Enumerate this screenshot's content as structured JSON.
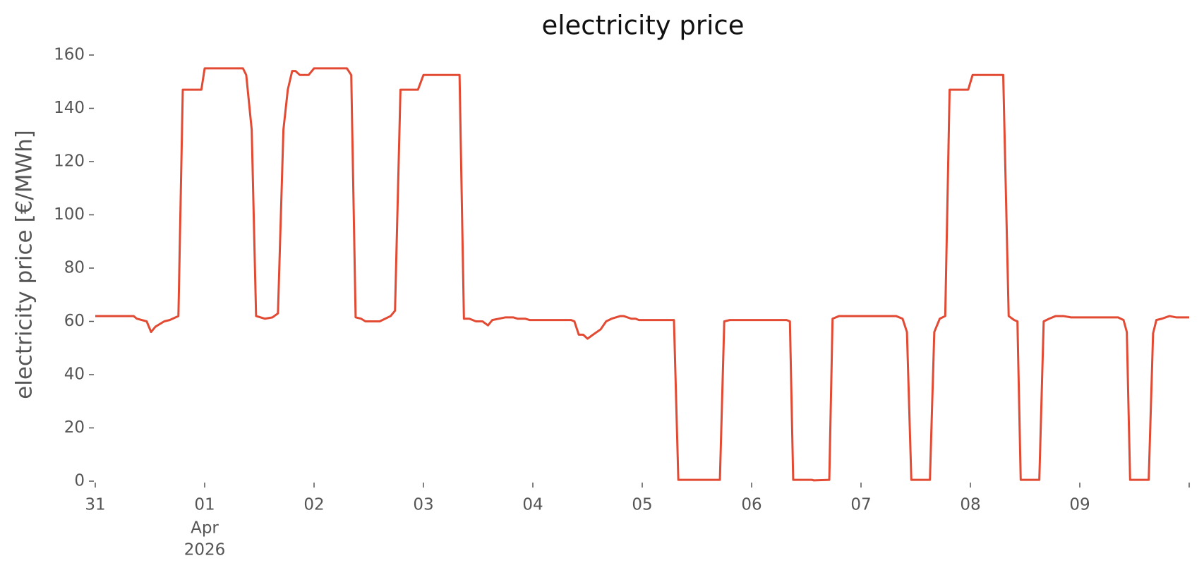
{
  "chart_data": {
    "type": "line",
    "title": "electricity price",
    "y_label": "electricity price [€/MWh]",
    "x_sublabels": [
      "Apr",
      "2026"
    ],
    "series": [
      {
        "name": "electricity price",
        "color": "#e24a33",
        "x": [
          0,
          0.35,
          0.38,
          0.47,
          0.51,
          0.55,
          0.63,
          0.68,
          0.76,
          0.8,
          0.97,
          1.0,
          1.35,
          1.38,
          1.43,
          1.47,
          1.55,
          1.62,
          1.67,
          1.72,
          1.76,
          1.8,
          1.83,
          1.87,
          1.95,
          2.0,
          2.3,
          2.34,
          2.38,
          2.43,
          2.47,
          2.6,
          2.65,
          2.7,
          2.74,
          2.79,
          2.95,
          3.0,
          3.33,
          3.37,
          3.42,
          3.48,
          3.54,
          3.59,
          3.63,
          3.75,
          3.82,
          3.86,
          3.93,
          3.97,
          4.35,
          4.38,
          4.42,
          4.46,
          4.5,
          4.55,
          4.62,
          4.67,
          4.72,
          4.8,
          4.83,
          4.9,
          4.94,
          4.97,
          5.0,
          5.29,
          5.33,
          5.71,
          5.75,
          5.8,
          6.32,
          6.35,
          6.38,
          6.55,
          6.57,
          6.71,
          6.74,
          6.8,
          7.32,
          7.38,
          7.42,
          7.46,
          7.63,
          7.67,
          7.72,
          7.77,
          7.81,
          7.98,
          8.02,
          8.3,
          8.35,
          8.4,
          8.43,
          8.46,
          8.63,
          8.67,
          8.72,
          8.78,
          8.85,
          8.92,
          9.35,
          9.4,
          9.43,
          9.46,
          9.63,
          9.67,
          9.7,
          9.75,
          9.82,
          9.88,
          10
        ],
        "values": [
          62,
          62,
          61,
          60,
          56,
          58,
          60,
          60.5,
          62,
          147,
          147,
          155,
          155,
          152.5,
          132,
          62,
          61,
          61.5,
          63,
          132,
          147,
          154,
          154,
          152.5,
          152.5,
          155,
          155,
          152.5,
          61.5,
          61,
          60,
          60,
          61,
          62,
          64,
          147,
          147,
          152.5,
          152.5,
          61,
          61,
          60,
          60,
          58.5,
          60.5,
          61.5,
          61.5,
          61,
          61,
          60.5,
          60.5,
          60,
          55,
          55,
          53.5,
          55,
          57,
          60,
          61,
          62,
          62,
          61,
          61,
          60.5,
          60.5,
          60.5,
          0.5,
          0.5,
          60,
          60.5,
          60.5,
          60,
          0.5,
          0.5,
          0.3,
          0.5,
          61,
          62,
          62,
          61,
          56,
          0.5,
          0.5,
          56,
          61,
          62,
          147,
          147,
          152.5,
          152.5,
          62,
          60.5,
          60,
          0.5,
          0.5,
          60,
          61,
          62,
          62,
          61.5,
          61.5,
          60.5,
          56,
          0.5,
          0.5,
          55.5,
          60.5,
          61,
          62,
          61.5,
          61.5
        ]
      }
    ],
    "xlim": [
      0,
      10
    ],
    "xticks": [
      {
        "value": 0,
        "label": "31"
      },
      {
        "value": 1,
        "label": "01"
      },
      {
        "value": 2,
        "label": "02"
      },
      {
        "value": 3,
        "label": "03"
      },
      {
        "value": 4,
        "label": "04"
      },
      {
        "value": 5,
        "label": "05"
      },
      {
        "value": 6,
        "label": "06"
      },
      {
        "value": 7,
        "label": "07"
      },
      {
        "value": 8,
        "label": "08"
      },
      {
        "value": 9,
        "label": "09"
      }
    ],
    "ylim": [
      0,
      160
    ],
    "yticks": [
      0,
      20,
      40,
      60,
      80,
      100,
      120,
      140,
      160
    ],
    "grid": false
  }
}
